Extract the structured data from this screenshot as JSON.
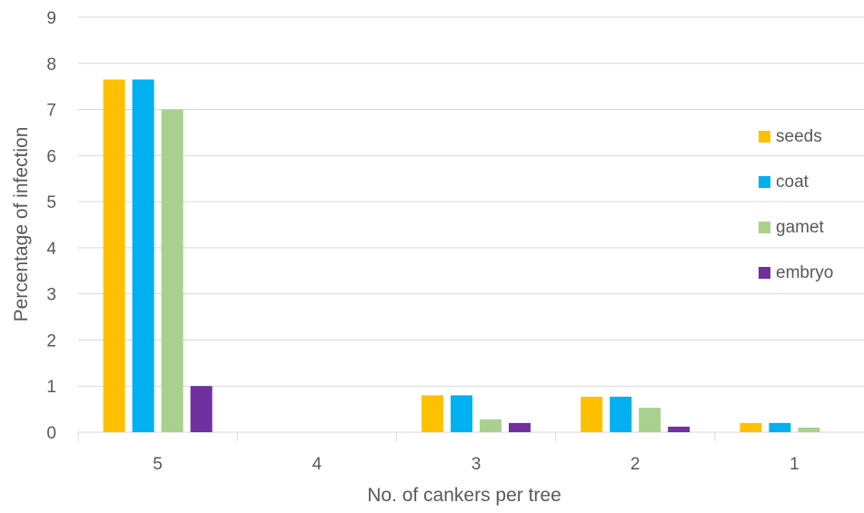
{
  "chart_data": {
    "type": "bar",
    "categories": [
      "5",
      "4",
      "3",
      "2",
      "1"
    ],
    "series": [
      {
        "name": "seeds",
        "color": "#FFC000",
        "values": [
          7.65,
          0,
          0.8,
          0.77,
          0.2
        ]
      },
      {
        "name": "coat",
        "color": "#00B0F0",
        "values": [
          7.65,
          0,
          0.8,
          0.77,
          0.2
        ]
      },
      {
        "name": "gamet",
        "color": "#A9D18E",
        "values": [
          7.0,
          0,
          0.28,
          0.53,
          0.1
        ]
      },
      {
        "name": "embryo",
        "color": "#7030A0",
        "values": [
          1.0,
          0,
          0.2,
          0.12,
          0
        ]
      }
    ],
    "title": "",
    "xlabel": "No. of cankers per tree",
    "ylabel": "Percentage of infection",
    "ylim": [
      0,
      9
    ],
    "yticks": [
      "0",
      "1",
      "2",
      "3",
      "4",
      "5",
      "6",
      "7",
      "8",
      "9"
    ],
    "grid": true,
    "legend_position": "right"
  }
}
